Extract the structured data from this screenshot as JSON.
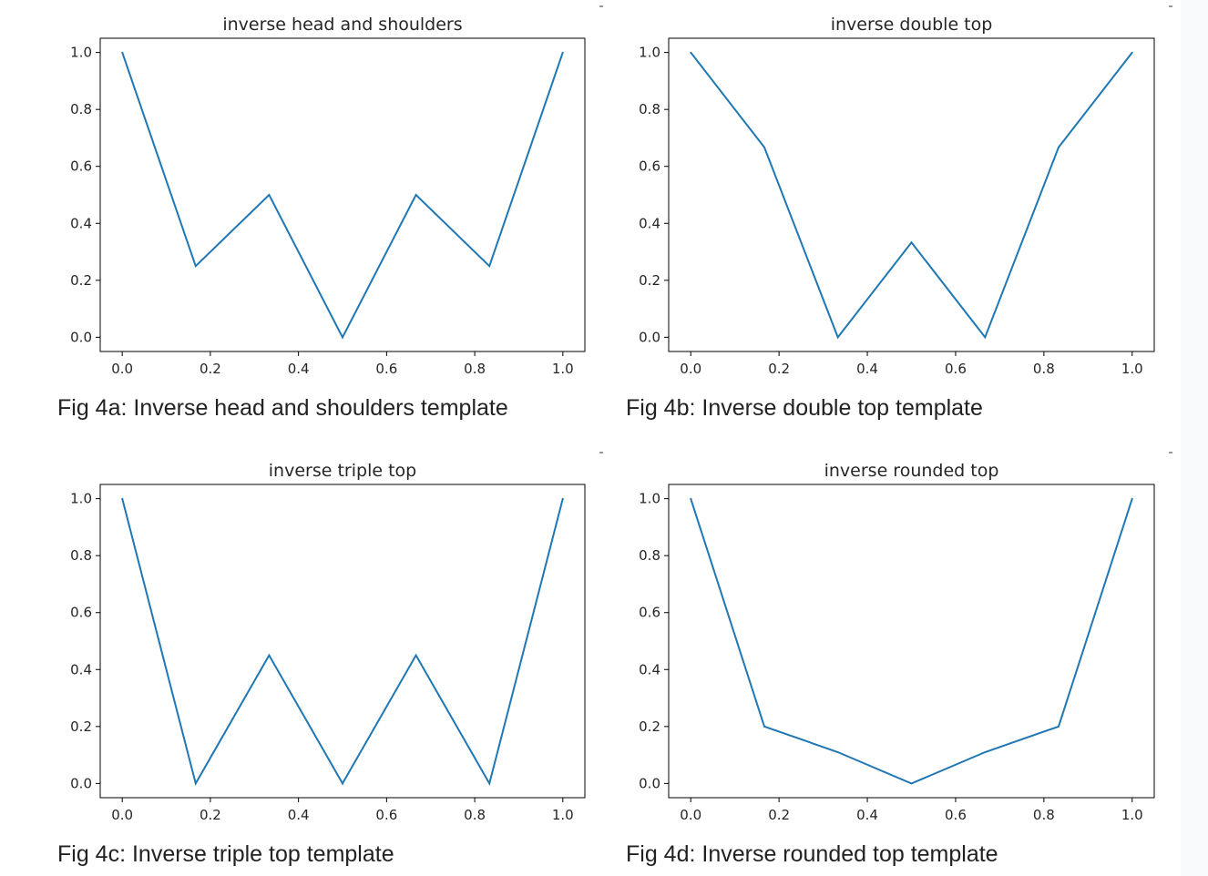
{
  "figures": [
    {
      "caption": "Fig 4a: Inverse head and shoulders template",
      "chart": {
        "type": "line",
        "title": "inverse head and shoulders",
        "x": [
          0.0,
          0.1667,
          0.3333,
          0.5,
          0.6667,
          0.8333,
          1.0
        ],
        "y": [
          1.0,
          0.25,
          0.5,
          0.0,
          0.5,
          0.25,
          1.0
        ],
        "xticks": [
          "0.0",
          "0.2",
          "0.4",
          "0.6",
          "0.8",
          "1.0"
        ],
        "yticks": [
          "0.0",
          "0.2",
          "0.4",
          "0.6",
          "0.8",
          "1.0"
        ],
        "xlim": [
          -0.05,
          1.05
        ],
        "ylim": [
          -0.05,
          1.05
        ],
        "color": "#1f77b4"
      }
    },
    {
      "caption": "Fig 4b: Inverse double top template",
      "chart": {
        "type": "line",
        "title": "inverse double top",
        "x": [
          0.0,
          0.1667,
          0.3333,
          0.5,
          0.6667,
          0.8333,
          1.0
        ],
        "y": [
          1.0,
          0.667,
          0.0,
          0.333,
          0.0,
          0.667,
          1.0
        ],
        "xticks": [
          "0.0",
          "0.2",
          "0.4",
          "0.6",
          "0.8",
          "1.0"
        ],
        "yticks": [
          "0.0",
          "0.2",
          "0.4",
          "0.6",
          "0.8",
          "1.0"
        ],
        "xlim": [
          -0.05,
          1.05
        ],
        "ylim": [
          -0.05,
          1.05
        ],
        "color": "#1f77b4"
      }
    },
    {
      "caption": "Fig 4c: Inverse triple top template",
      "chart": {
        "type": "line",
        "title": "inverse triple top",
        "x": [
          0.0,
          0.1667,
          0.3333,
          0.5,
          0.6667,
          0.8333,
          1.0
        ],
        "y": [
          1.0,
          0.0,
          0.45,
          0.0,
          0.45,
          0.0,
          1.0
        ],
        "xticks": [
          "0.0",
          "0.2",
          "0.4",
          "0.6",
          "0.8",
          "1.0"
        ],
        "yticks": [
          "0.0",
          "0.2",
          "0.4",
          "0.6",
          "0.8",
          "1.0"
        ],
        "xlim": [
          -0.05,
          1.05
        ],
        "ylim": [
          -0.05,
          1.05
        ],
        "color": "#1f77b4"
      }
    },
    {
      "caption": "Fig 4d: Inverse rounded top template",
      "chart": {
        "type": "line",
        "title": "inverse rounded top",
        "x": [
          0.0,
          0.1667,
          0.3333,
          0.5,
          0.6667,
          0.8333,
          1.0
        ],
        "y": [
          1.0,
          0.2,
          0.11,
          0.0,
          0.11,
          0.2,
          1.0
        ],
        "xticks": [
          "0.0",
          "0.2",
          "0.4",
          "0.6",
          "0.8",
          "1.0"
        ],
        "yticks": [
          "0.0",
          "0.2",
          "0.4",
          "0.6",
          "0.8",
          "1.0"
        ],
        "xlim": [
          -0.05,
          1.05
        ],
        "ylim": [
          -0.05,
          1.05
        ],
        "color": "#1f77b4"
      }
    }
  ],
  "chart_data": [
    {
      "type": "line",
      "title": "inverse head and shoulders",
      "x": [
        0.0,
        0.1667,
        0.3333,
        0.5,
        0.6667,
        0.8333,
        1.0
      ],
      "y": [
        1.0,
        0.25,
        0.5,
        0.0,
        0.5,
        0.25,
        1.0
      ],
      "xlabel": "",
      "ylabel": "",
      "xlim": [
        -0.05,
        1.05
      ],
      "ylim": [
        -0.05,
        1.05
      ],
      "grid": false
    },
    {
      "type": "line",
      "title": "inverse double top",
      "x": [
        0.0,
        0.1667,
        0.3333,
        0.5,
        0.6667,
        0.8333,
        1.0
      ],
      "y": [
        1.0,
        0.667,
        0.0,
        0.333,
        0.0,
        0.667,
        1.0
      ],
      "xlabel": "",
      "ylabel": "",
      "xlim": [
        -0.05,
        1.05
      ],
      "ylim": [
        -0.05,
        1.05
      ],
      "grid": false
    },
    {
      "type": "line",
      "title": "inverse triple top",
      "x": [
        0.0,
        0.1667,
        0.3333,
        0.5,
        0.6667,
        0.8333,
        1.0
      ],
      "y": [
        1.0,
        0.0,
        0.45,
        0.0,
        0.45,
        0.0,
        1.0
      ],
      "xlabel": "",
      "ylabel": "",
      "xlim": [
        -0.05,
        1.05
      ],
      "ylim": [
        -0.05,
        1.05
      ],
      "grid": false
    },
    {
      "type": "line",
      "title": "inverse rounded top",
      "x": [
        0.0,
        0.1667,
        0.3333,
        0.5,
        0.6667,
        0.8333,
        1.0
      ],
      "y": [
        1.0,
        0.2,
        0.11,
        0.0,
        0.11,
        0.2,
        1.0
      ],
      "xlabel": "",
      "ylabel": "",
      "xlim": [
        -0.05,
        1.05
      ],
      "ylim": [
        -0.05,
        1.05
      ],
      "grid": false
    }
  ]
}
